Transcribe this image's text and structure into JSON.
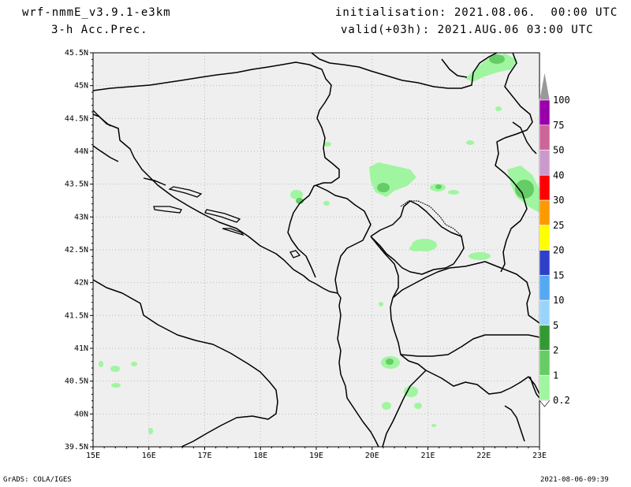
{
  "header": {
    "model": "wrf-nmmE_v3.9.1-e3km",
    "field": "3-h Acc.Prec.",
    "init": "initialisation: 2021.08.06.  00:00 UTC",
    "valid": "valid(+03h): 2021.AUG.06 03:00 UTC"
  },
  "footer": {
    "left": "GrADS: COLA/IGES",
    "right": "2021-08-06-09:39"
  },
  "axes": {
    "lon_labels": [
      "15E",
      "16E",
      "17E",
      "18E",
      "19E",
      "20E",
      "21E",
      "22E",
      "23E"
    ],
    "lat_labels": [
      "45.5N",
      "45N",
      "44.5N",
      "44N",
      "43.5N",
      "43N",
      "42.5N",
      "42N",
      "41.5N",
      "41N",
      "40.5N",
      "40N",
      "39.5N"
    ]
  },
  "colorbar": {
    "levels": [
      "0.2",
      "1",
      "2",
      "5",
      "10",
      "15",
      "20",
      "25",
      "30",
      "40",
      "50",
      "75",
      "100"
    ],
    "colors": [
      "#a0f5a0",
      "#66cc66",
      "#339933",
      "#9ad4fb",
      "#55a8f2",
      "#2f3fc8",
      "#ffff00",
      "#ff9900",
      "#ff0000",
      "#cc99cc",
      "#cc6699",
      "#9900aa",
      "#999999"
    ]
  },
  "colors": {
    "land": "#efefef",
    "border": "#000000",
    "grid": "#bbbbbb"
  }
}
